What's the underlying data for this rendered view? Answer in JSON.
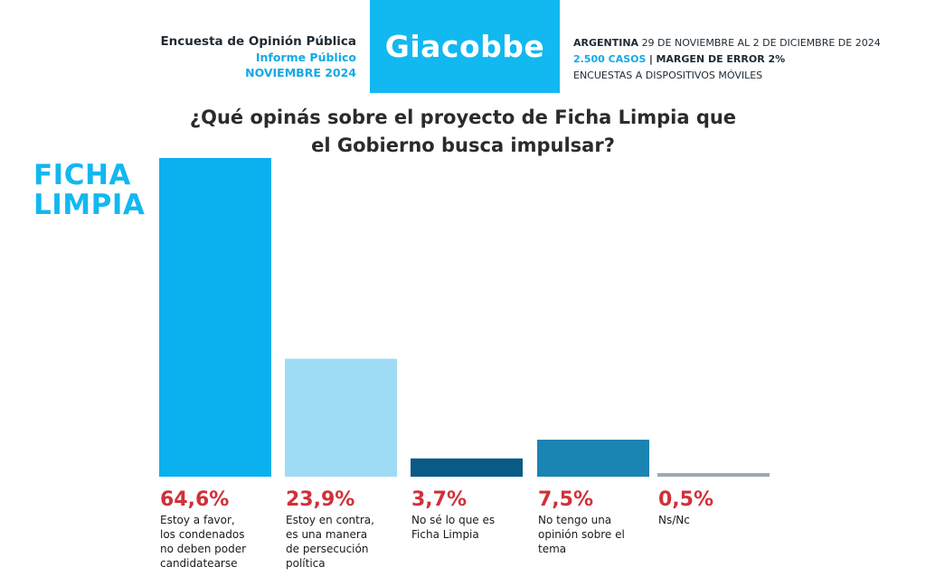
{
  "header": {
    "survey_title": "Encuesta de Opinión Pública",
    "report_label": "Informe Público",
    "report_month": "NOVIEMBRE 2024",
    "logo_text": "Giacobbe",
    "country": "ARGENTINA",
    "dates": "29 DE NOVIEMBRE AL 2 DE DICIEMBRE DE 2024",
    "cases": "2.500 CASOS",
    "separator": "|",
    "margin": "MARGEN DE ERROR 2%",
    "method": "ENCUESTAS A DISPOSITIVOS MÓVILES"
  },
  "chart_data": {
    "type": "bar",
    "title": "¿Qué opinás sobre el proyecto de Ficha Limpia que el Gobierno busca impulsar?",
    "title_lines": [
      "¿Qué opinás sobre el proyecto de Ficha Limpia que",
      "el Gobierno busca impulsar?"
    ],
    "brand_lines": [
      "FICHA",
      "LIMPIA"
    ],
    "categories": [
      "Estoy a favor, los condenados no deben poder candidatearse",
      "Estoy en contra, es una manera de persecución política",
      "No sé lo que es Ficha Limpia",
      "No tengo una opinión sobre el tema",
      "Ns/Nc"
    ],
    "category_lines": [
      [
        "Estoy a favor,",
        "los condenados",
        "no deben poder",
        "candidatearse"
      ],
      [
        "Estoy en contra,",
        "es una manera",
        "de persecución",
        "política"
      ],
      [
        "No sé lo que es",
        "Ficha Limpia"
      ],
      [
        "No tengo una",
        "opinión sobre el",
        "tema"
      ],
      [
        "Ns/Nc"
      ]
    ],
    "values": [
      64.6,
      23.9,
      3.7,
      7.5,
      0.5
    ],
    "value_labels": [
      "64,6%",
      "23,9%",
      "3,7%",
      "7,5%",
      "0,5%"
    ],
    "colors": [
      "#0bb0ef",
      "#9edcf5",
      "#0a5a86",
      "#1a85b3",
      "#9ea9b1"
    ],
    "ylim": [
      0,
      64.6
    ],
    "grid": false,
    "legend": "none"
  }
}
